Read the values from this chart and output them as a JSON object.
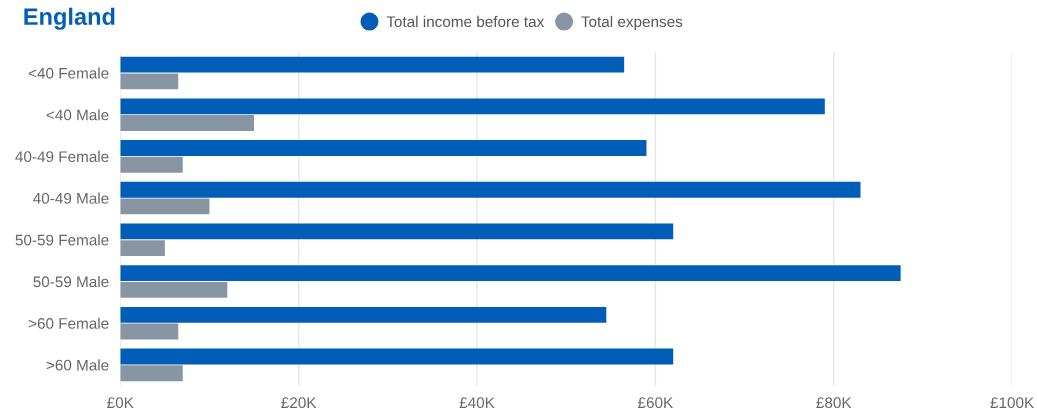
{
  "chart_data": {
    "type": "bar",
    "orientation": "horizontal",
    "title": "England",
    "categories": [
      "<40 Female",
      "<40 Male",
      "40-49 Female",
      "40-49 Male",
      "50-59 Female",
      "50-59 Male",
      ">60 Female",
      ">60 Male"
    ],
    "series": [
      {
        "name": "Total income before tax",
        "color": "#005eb8",
        "values": [
          56.5,
          79,
          59,
          83,
          62,
          87.5,
          54.5,
          62
        ]
      },
      {
        "name": "Total expenses",
        "color": "#8896a3",
        "values": [
          6.5,
          15,
          7,
          10,
          5,
          12,
          6.5,
          7
        ]
      }
    ],
    "xlim": [
      0,
      100
    ],
    "xticks": [
      {
        "value": 0,
        "label": "£0K"
      },
      {
        "value": 20,
        "label": "£20K"
      },
      {
        "value": 40,
        "label": "£40K"
      },
      {
        "value": 60,
        "label": "£60K"
      },
      {
        "value": 80,
        "label": "£80K"
      },
      {
        "value": 100,
        "label": "£100K"
      }
    ],
    "grid": "x",
    "legend": "top",
    "marker": "circle"
  }
}
